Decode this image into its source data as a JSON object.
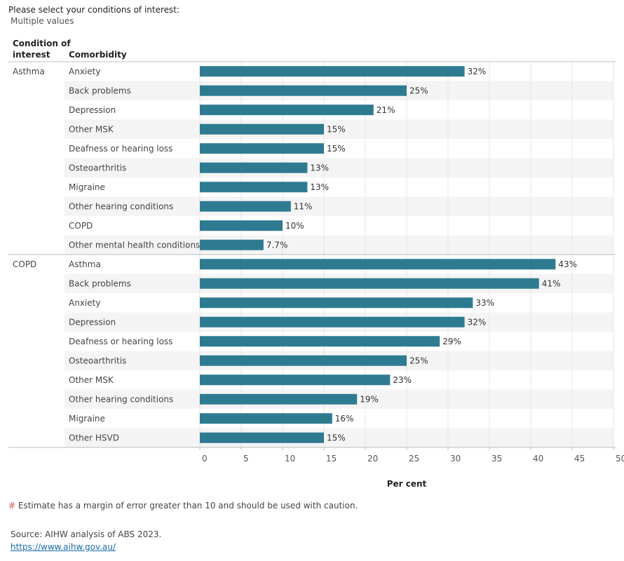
{
  "filter": {
    "title": "Please select your conditions of interest:",
    "value": "Multiple values"
  },
  "headers": {
    "condition_line1": "Condition of",
    "condition_line2": "interest",
    "comorbidity": "Comorbidity"
  },
  "colors": {
    "bar": "#2e7b91",
    "band": "#f4f4f4",
    "grid": "#e6e6e6",
    "rule": "#bdbdbd"
  },
  "chart_data": {
    "type": "bar",
    "orientation": "horizontal",
    "xlabel": "Per cent",
    "xlim": [
      0,
      50
    ],
    "xticks": [
      0,
      5,
      10,
      15,
      20,
      25,
      30,
      35,
      40,
      45,
      50
    ],
    "grid": true,
    "groups": [
      {
        "condition": "Asthma",
        "rows": [
          {
            "comorbidity": "Anxiety",
            "value": 32,
            "label": "32%"
          },
          {
            "comorbidity": "Back problems",
            "value": 25,
            "label": "25%"
          },
          {
            "comorbidity": "Depression",
            "value": 21,
            "label": "21%"
          },
          {
            "comorbidity": "Other MSK",
            "value": 15,
            "label": "15%"
          },
          {
            "comorbidity": "Deafness or hearing loss",
            "value": 15,
            "label": "15%"
          },
          {
            "comorbidity": "Osteoarthritis",
            "value": 13,
            "label": "13%"
          },
          {
            "comorbidity": "Migraine",
            "value": 13,
            "label": "13%"
          },
          {
            "comorbidity": "Other hearing conditions",
            "value": 11,
            "label": "11%"
          },
          {
            "comorbidity": "COPD",
            "value": 10,
            "label": "10%"
          },
          {
            "comorbidity": "Other mental health conditions",
            "value": 7.7,
            "label": "7.7%"
          }
        ]
      },
      {
        "condition": "COPD",
        "rows": [
          {
            "comorbidity": "Asthma",
            "value": 43,
            "label": "43%"
          },
          {
            "comorbidity": "Back problems",
            "value": 41,
            "label": "41%"
          },
          {
            "comorbidity": "Anxiety",
            "value": 33,
            "label": "33%"
          },
          {
            "comorbidity": "Depression",
            "value": 32,
            "label": "32%"
          },
          {
            "comorbidity": "Deafness or hearing loss",
            "value": 29,
            "label": "29%"
          },
          {
            "comorbidity": "Osteoarthritis",
            "value": 25,
            "label": "25%"
          },
          {
            "comorbidity": "Other MSK",
            "value": 23,
            "label": "23%"
          },
          {
            "comorbidity": "Other hearing conditions",
            "value": 19,
            "label": "19%"
          },
          {
            "comorbidity": "Migraine",
            "value": 16,
            "label": "16%"
          },
          {
            "comorbidity": "Other HSVD",
            "value": 15,
            "label": "15%"
          }
        ]
      }
    ]
  },
  "footnote": {
    "marker": "#",
    "text": " Estimate has a margin of error greater than 10 and should be used with caution."
  },
  "source": {
    "text": "Source: AIHW analysis of ABS 2023.",
    "link": "https://www.aihw.gov.au/"
  }
}
